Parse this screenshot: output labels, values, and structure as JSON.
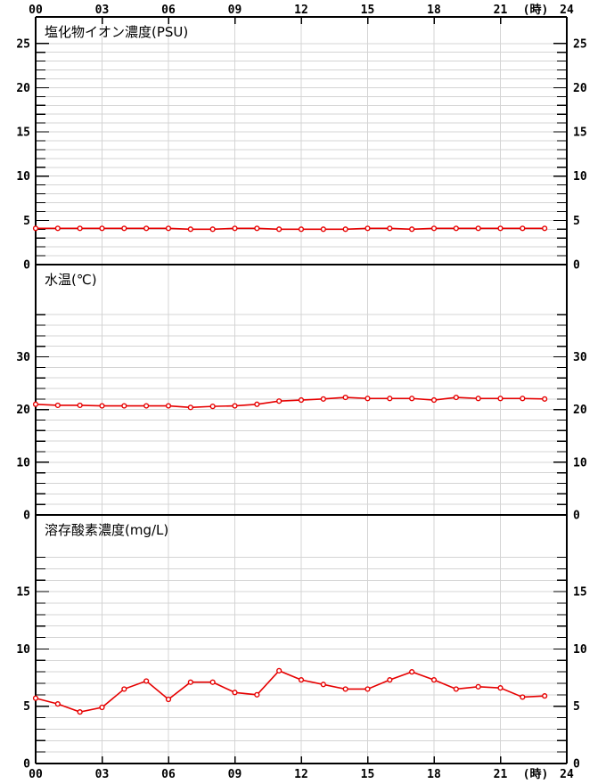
{
  "colors": {
    "line": "#e60000",
    "marker_fill": "#ffffff",
    "grid": "#d4d4d4",
    "axis": "#000000",
    "text": "#000000",
    "background": "#ffffff"
  },
  "x_axis": {
    "tick_hours": [
      0,
      3,
      6,
      9,
      12,
      15,
      18,
      21,
      24
    ],
    "tick_labels": [
      "00",
      "03",
      "06",
      "09",
      "12",
      "15",
      "18",
      "21",
      "24"
    ],
    "unit_label": "(時)",
    "range": [
      0,
      24
    ],
    "labels_shown_top": true,
    "labels_shown_bottom": true
  },
  "chart_data": [
    {
      "type": "line",
      "title": "塩化物イオン濃度(PSU)",
      "x_hours": [
        0,
        1,
        2,
        3,
        4,
        5,
        6,
        7,
        8,
        9,
        10,
        11,
        12,
        13,
        14,
        15,
        16,
        17,
        18,
        19,
        20,
        21,
        22,
        23
      ],
      "values": [
        4.1,
        4.1,
        4.1,
        4.1,
        4.1,
        4.1,
        4.1,
        4.0,
        4.0,
        4.1,
        4.1,
        4.0,
        4.0,
        4.0,
        4.0,
        4.1,
        4.1,
        4.0,
        4.1,
        4.1,
        4.1,
        4.1,
        4.1,
        4.1
      ],
      "ylim": [
        0,
        28
      ],
      "yticks_labeled": [
        0,
        5,
        10,
        15,
        20,
        25
      ],
      "ytick_minor_step": 1,
      "ytick_minor_max": 25,
      "grid": true,
      "legend": "none"
    },
    {
      "type": "line",
      "title": "水温(℃)",
      "x_hours": [
        0,
        1,
        2,
        3,
        4,
        5,
        6,
        7,
        8,
        9,
        10,
        11,
        12,
        13,
        14,
        15,
        16,
        17,
        18,
        19,
        20,
        21,
        22,
        23
      ],
      "values": [
        21.0,
        20.8,
        20.8,
        20.7,
        20.7,
        20.7,
        20.7,
        20.4,
        20.6,
        20.7,
        21.0,
        21.6,
        21.8,
        22.0,
        22.3,
        22.1,
        22.1,
        22.1,
        21.8,
        22.3,
        22.1,
        22.1,
        22.1,
        22.0
      ],
      "ylim": [
        0,
        47.5
      ],
      "yticks_labeled": [
        0,
        10,
        20,
        30
      ],
      "ytick_minor_step": 2,
      "ytick_minor_max": 38,
      "grid": true,
      "legend": "none"
    },
    {
      "type": "line",
      "title": "溶存酸素濃度(mg/L)",
      "x_hours": [
        0,
        1,
        2,
        3,
        4,
        5,
        6,
        7,
        8,
        9,
        10,
        11,
        12,
        13,
        14,
        15,
        16,
        17,
        18,
        19,
        20,
        21,
        22,
        23
      ],
      "values": [
        5.7,
        5.2,
        4.5,
        4.9,
        6.5,
        7.2,
        5.6,
        7.1,
        7.1,
        6.2,
        6.0,
        8.1,
        7.3,
        6.9,
        6.5,
        6.5,
        7.3,
        8.0,
        7.3,
        6.5,
        6.7,
        6.6,
        5.8,
        5.9
      ],
      "ylim": [
        0,
        21.7
      ],
      "yticks_labeled": [
        0,
        5,
        10,
        15
      ],
      "ytick_minor_step": 1,
      "ytick_minor_max": 18,
      "grid": true,
      "legend": "none"
    }
  ]
}
